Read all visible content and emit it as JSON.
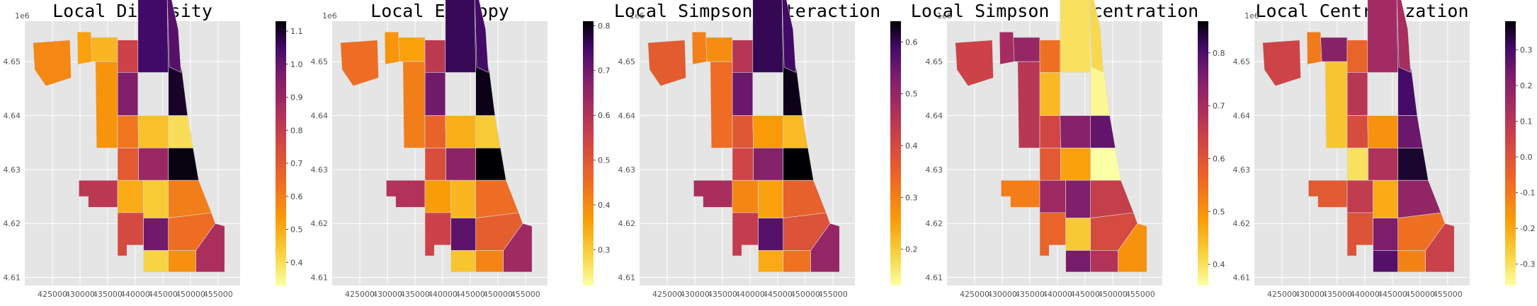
{
  "chart_data": [
    {
      "type": "choropleth",
      "title": "Local Diversity",
      "x_offset_label": "",
      "y_offset_label": "1e6",
      "xticks": [
        "425000",
        "430000",
        "435000",
        "440000",
        "445000",
        "450000",
        "455000"
      ],
      "yticks": [
        "4.61",
        "4.62",
        "4.63",
        "4.64",
        "4.65"
      ],
      "colorbar_ticks": [
        "0.4",
        "0.5",
        "0.6",
        "0.7",
        "0.8",
        "0.9",
        "1.0",
        "1.1"
      ],
      "colorbar_range": [
        0.33,
        1.13
      ],
      "grid": true,
      "colormap": "inferno_r",
      "regions": [
        0.58,
        0.52,
        0.48,
        0.78,
        1.05,
        1.1,
        0.95,
        0.55,
        0.62,
        0.46,
        0.4,
        0.7,
        0.9,
        1.12,
        0.82,
        0.5,
        0.44,
        0.6,
        0.75,
        0.98,
        0.64,
        0.42,
        0.56,
        0.86,
        1.02
      ]
    },
    {
      "type": "choropleth",
      "title": "Local Entropy",
      "x_offset_label": "",
      "y_offset_label": "1e6",
      "xticks": [
        "425000",
        "430000",
        "435000",
        "440000",
        "445000",
        "450000",
        "455000"
      ],
      "yticks": [
        "4.61",
        "4.62",
        "4.63",
        "4.64",
        "4.65"
      ],
      "colorbar_ticks": [
        "0.3",
        "0.4",
        "0.5",
        "0.6",
        "0.7",
        "0.8"
      ],
      "colorbar_range": [
        0.22,
        0.81
      ],
      "grid": true,
      "colormap": "inferno_r",
      "regions": [
        0.45,
        0.38,
        0.36,
        0.58,
        0.76,
        0.8,
        0.7,
        0.42,
        0.47,
        0.34,
        0.3,
        0.52,
        0.66,
        0.81,
        0.6,
        0.37,
        0.33,
        0.45,
        0.55,
        0.72,
        0.48,
        0.31,
        0.41,
        0.63,
        0.75
      ]
    },
    {
      "type": "choropleth",
      "title": "Local Simpson Interaction",
      "x_offset_label": "",
      "y_offset_label": "1e6",
      "xticks": [
        "425000",
        "430000",
        "435000",
        "440000",
        "445000",
        "450000",
        "455000"
      ],
      "yticks": [
        "4.61",
        "4.62",
        "4.63",
        "4.64",
        "4.65"
      ],
      "colorbar_ticks": [
        "0.2",
        "0.3",
        "0.4",
        "0.5",
        "0.6"
      ],
      "colorbar_range": [
        0.13,
        0.64
      ],
      "grid": true,
      "colormap": "inferno_r",
      "regions": [
        0.36,
        0.3,
        0.28,
        0.45,
        0.6,
        0.63,
        0.55,
        0.33,
        0.37,
        0.26,
        0.22,
        0.41,
        0.52,
        0.64,
        0.47,
        0.29,
        0.25,
        0.35,
        0.43,
        0.57,
        0.38,
        0.24,
        0.32,
        0.5,
        0.59
      ]
    },
    {
      "type": "choropleth",
      "title": "Local Simpson Concentration",
      "x_offset_label": "",
      "y_offset_label": "1e6",
      "xticks": [
        "425000",
        "430000",
        "435000",
        "440000",
        "445000",
        "450000",
        "455000"
      ],
      "yticks": [
        "4.61",
        "4.62",
        "4.63",
        "4.64",
        "4.65"
      ],
      "colorbar_ticks": [
        "0.4",
        "0.5",
        "0.6",
        "0.7",
        "0.8"
      ],
      "colorbar_range": [
        0.36,
        0.86
      ],
      "grid": true,
      "colormap": "inferno_r",
      "regions": [
        0.64,
        0.7,
        0.72,
        0.55,
        0.4,
        0.37,
        0.45,
        0.67,
        0.63,
        0.74,
        0.78,
        0.59,
        0.48,
        0.36,
        0.53,
        0.71,
        0.75,
        0.65,
        0.57,
        0.43,
        0.62,
        0.76,
        0.68,
        0.5,
        0.41
      ]
    },
    {
      "type": "choropleth",
      "title": "Local Centralization",
      "x_offset_label": "",
      "y_offset_label": "1e6",
      "xticks": [
        "425000",
        "430000",
        "435000",
        "440000",
        "445000",
        "450000",
        "455000"
      ],
      "yticks": [
        "4.61",
        "4.62",
        "4.63",
        "4.64",
        "4.65"
      ],
      "colorbar_ticks": [
        "-0.3",
        "-0.2",
        "-0.1",
        "0.0",
        "0.1",
        "0.2",
        "0.3"
      ],
      "colorbar_range": [
        -0.36,
        0.38
      ],
      "grid": true,
      "colormap": "inferno_r",
      "regions": [
        0.05,
        -0.1,
        0.2,
        -0.05,
        0.15,
        0.3,
        0.1,
        -0.25,
        0.02,
        -0.15,
        0.25,
        -0.3,
        0.12,
        0.35,
        -0.02,
        0.08,
        -0.2,
        0.18,
        0.0,
        0.22,
        -0.08,
        0.28,
        -0.12,
        0.06,
        0.14
      ]
    }
  ]
}
